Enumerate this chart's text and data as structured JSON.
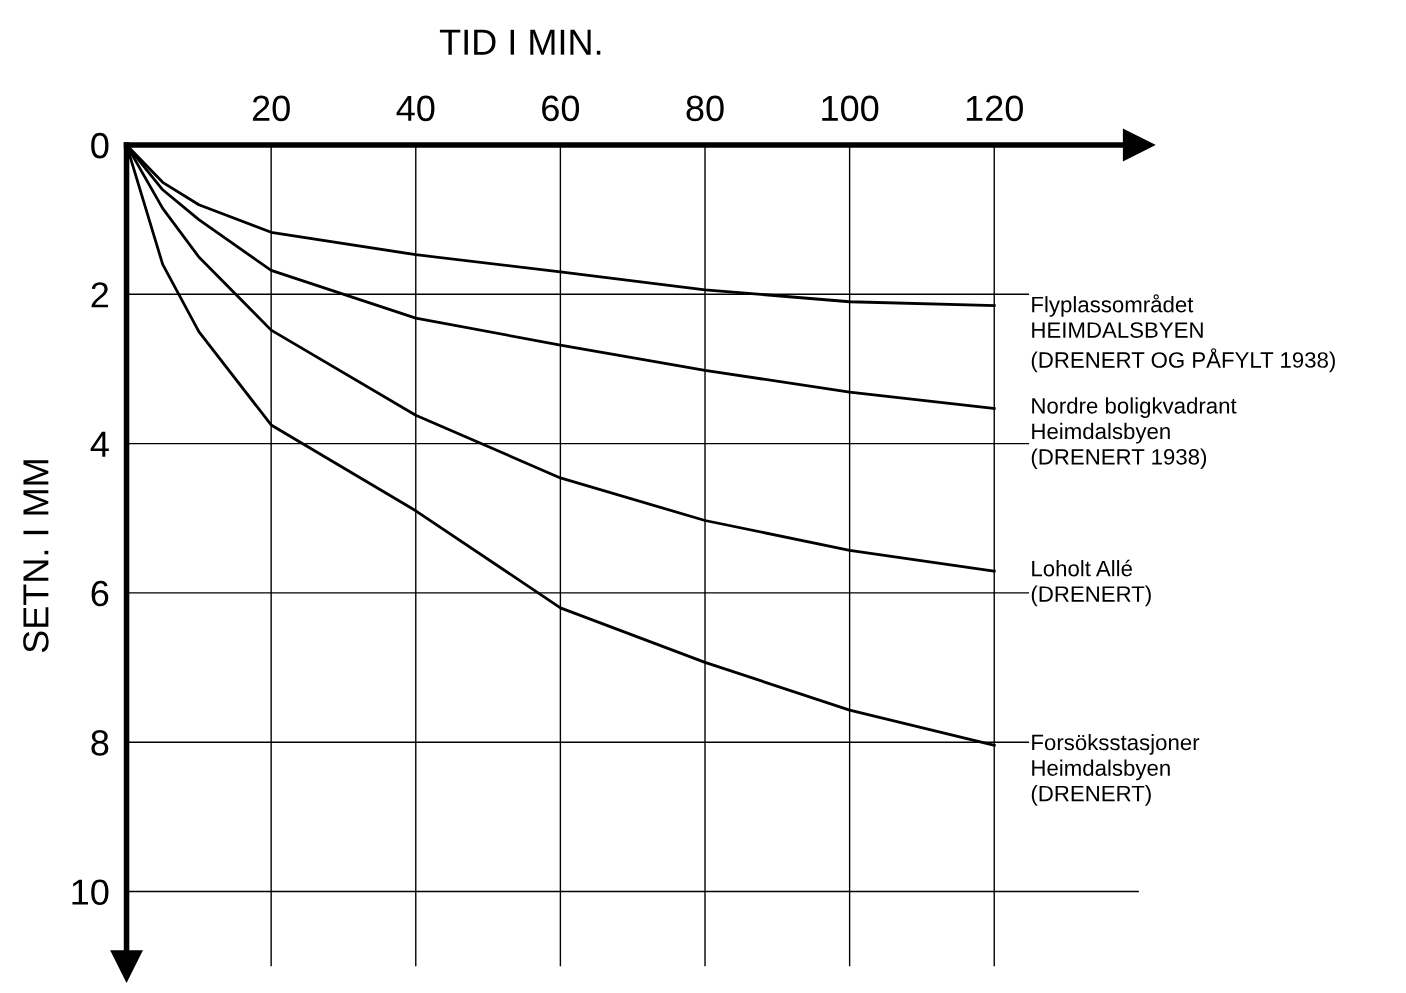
{
  "chart_data": {
    "type": "line",
    "xlabel": "TID I MIN.",
    "ylabel": "SETN. I MM",
    "x": [
      0,
      5,
      10,
      20,
      40,
      60,
      80,
      100,
      120
    ],
    "series": [
      {
        "name": "Flyplassområdet\nHEIMDALSBYEN\n(DRENERT OG PÅFYLT 1938)",
        "color": "#000000",
        "values": [
          0,
          0.5,
          0.8,
          1.17,
          1.47,
          1.7,
          1.94,
          2.1,
          2.15
        ]
      },
      {
        "name": "Nordre boligkvadrant\nHeimdalsbyen\n(DRENERT 1938)",
        "color": "#000000",
        "values": [
          0,
          0.6,
          1.0,
          1.68,
          2.32,
          2.68,
          3.02,
          3.31,
          3.53
        ]
      },
      {
        "name": "Loholt Allé\n(DRENERT)",
        "color": "#000000",
        "values": [
          0,
          0.85,
          1.5,
          2.48,
          3.62,
          4.46,
          5.03,
          5.43,
          5.71
        ]
      },
      {
        "name": "Forsöksstasjoner\nHeimdalsbyen\n(DRENERT)",
        "color": "#000000",
        "values": [
          0,
          1.6,
          2.5,
          3.75,
          4.9,
          6.2,
          6.93,
          7.57,
          8.04
        ]
      }
    ],
    "xlim": [
      0,
      140
    ],
    "ylim": [
      11,
      0
    ],
    "xticks": [
      20,
      40,
      60,
      80,
      100,
      120
    ],
    "yticks": [
      0,
      2,
      4,
      6,
      8,
      10
    ],
    "grid": true,
    "legend": false,
    "marker": "none",
    "line_style": "solid"
  }
}
